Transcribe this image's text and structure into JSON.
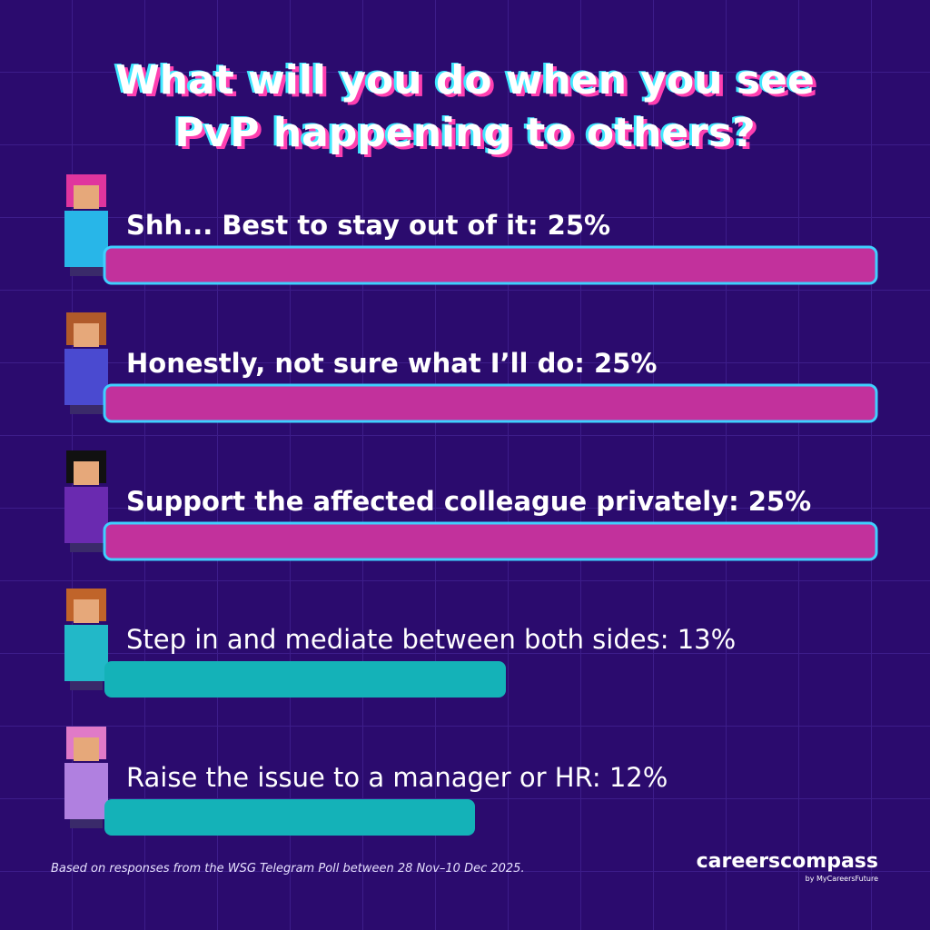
{
  "chart_data": {
    "type": "bar",
    "orientation": "horizontal",
    "title": [
      "What will you do when you see",
      "PvP happening to others?"
    ],
    "categories": [
      "Shh... Best to stay out of it: 25%",
      "Honestly, not sure what I’ll do: 25%",
      "Support the affected colleague privately: 25%",
      "Step in and mediate between both sides: 13%",
      "Raise the issue to a manager or HR: 12%"
    ],
    "values": [
      25,
      25,
      25,
      13,
      12
    ],
    "colors": [
      "#c2319c",
      "#c2319c",
      "#c2319c",
      "#14b2b8",
      "#14b2b8"
    ],
    "highlight": [
      true,
      true,
      true,
      false,
      false
    ],
    "footnote": "Based on responses from the WSG Telegram Poll between 28 Nov–10 Dec 2025.",
    "brand": "careerscompass",
    "brand_sub": "by MyCareersFuture"
  }
}
